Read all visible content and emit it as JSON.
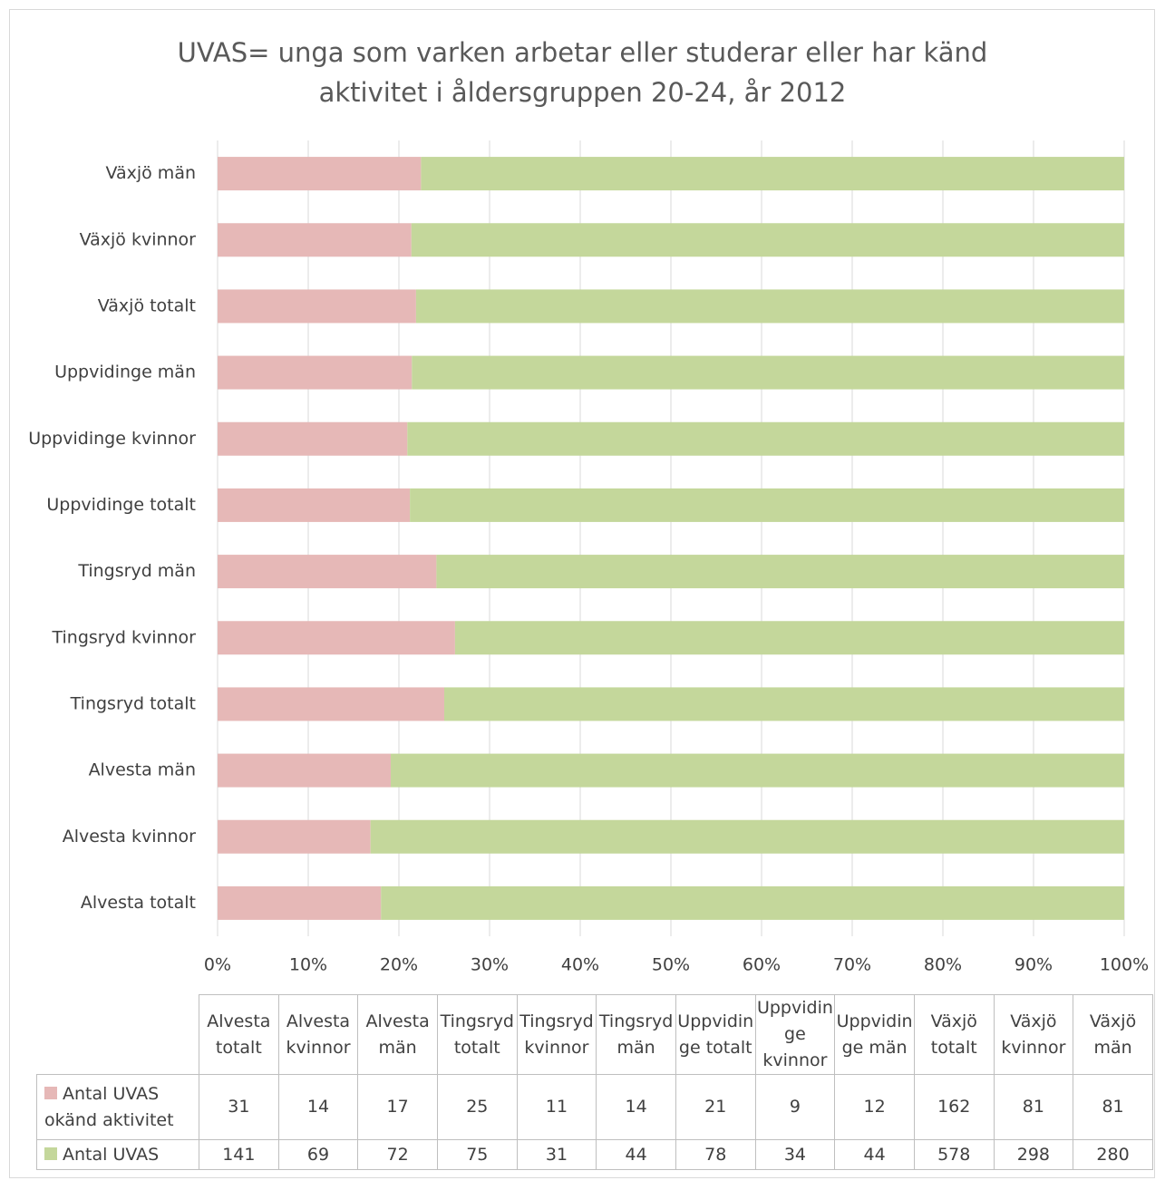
{
  "chart_data": {
    "type": "bar",
    "orientation": "horizontal",
    "stacked": "percent",
    "title": "UVAS= unga som varken arbetar eller studerar eller har känd aktivitet i åldersgruppen 20-24, år 2012",
    "categories": [
      "Alvesta totalt",
      "Alvesta kvinnor",
      "Alvesta män",
      "Tingsryd totalt",
      "Tingsryd kvinnor",
      "Tingsryd män",
      "Uppvidinge totalt",
      "Uppvidinge kvinnor",
      "Uppvidinge män",
      "Växjö totalt",
      "Växjö kvinnor",
      "Växjö män"
    ],
    "series": [
      {
        "name": "Antal UVAS okänd aktivitet",
        "color": "#e6b8b7",
        "values": [
          31,
          14,
          17,
          25,
          11,
          14,
          21,
          9,
          12,
          162,
          81,
          81
        ]
      },
      {
        "name": "Antal UVAS",
        "color": "#c4d79b",
        "values": [
          141,
          69,
          72,
          75,
          31,
          44,
          78,
          34,
          44,
          578,
          298,
          280
        ]
      }
    ],
    "xlim": [
      0,
      100
    ],
    "xticks": [
      {
        "value": 0,
        "label": "0%"
      },
      {
        "value": 10,
        "label": "10%"
      },
      {
        "value": 20,
        "label": "20%"
      },
      {
        "value": 30,
        "label": "30%"
      },
      {
        "value": 40,
        "label": "40%"
      },
      {
        "value": 50,
        "label": "50%"
      },
      {
        "value": 60,
        "label": "60%"
      },
      {
        "value": 70,
        "label": "70%"
      },
      {
        "value": 80,
        "label": "80%"
      },
      {
        "value": 90,
        "label": "90%"
      },
      {
        "value": 100,
        "label": "100%"
      }
    ],
    "grid": true,
    "data_table": true
  }
}
